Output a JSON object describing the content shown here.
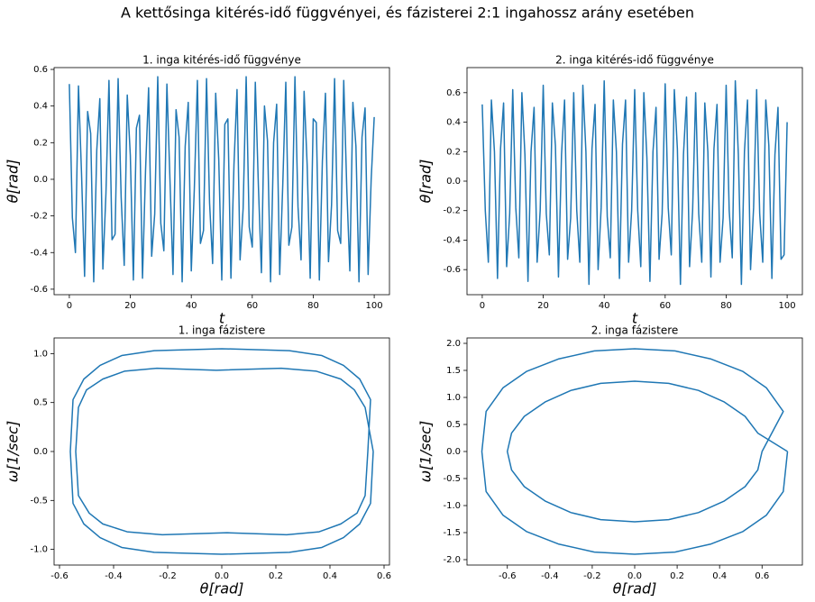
{
  "title": "A kettősinga kitérés-idő függvényei, és fázisterei 2:1 ingahossz arány esetében",
  "chart_data": [
    {
      "type": "line",
      "title": "1. inga kitérés-idő függvénye",
      "x_label": "t",
      "y_label": "θ[rad]",
      "color": "#1f77b4",
      "x": [
        0,
        1,
        2,
        3,
        4,
        5,
        6,
        7,
        8,
        9,
        10,
        11,
        12,
        13,
        14,
        15,
        16,
        17,
        18,
        19,
        20,
        21,
        22,
        23,
        24,
        25,
        26,
        27,
        28,
        29,
        30,
        31,
        32,
        33,
        34,
        35,
        36,
        37,
        38,
        39,
        40,
        41,
        42,
        43,
        44,
        45,
        46,
        47,
        48,
        49,
        50,
        51,
        52,
        53,
        54,
        55,
        56,
        57,
        58,
        59,
        60,
        61,
        62,
        63,
        64,
        65,
        66,
        67,
        68,
        69,
        70,
        71,
        72,
        73,
        74,
        75,
        76,
        77,
        78,
        79,
        80,
        81,
        82,
        83,
        84,
        85,
        86,
        87,
        88,
        89,
        90,
        91,
        92,
        93,
        94,
        95,
        96,
        97,
        98,
        99,
        100
      ],
      "values": [
        0.52,
        -0.21,
        -0.4,
        0.51,
        0.03,
        -0.53,
        0.37,
        0.25,
        -0.56,
        0.16,
        0.44,
        -0.49,
        -0.08,
        0.54,
        -0.33,
        -0.3,
        0.55,
        -0.1,
        -0.47,
        0.46,
        0.13,
        -0.55,
        0.28,
        0.35,
        -0.54,
        0.05,
        0.5,
        -0.42,
        -0.19,
        0.56,
        -0.24,
        -0.39,
        0.52,
        0.0,
        -0.52,
        0.38,
        0.23,
        -0.56,
        0.18,
        0.42,
        -0.5,
        -0.05,
        0.54,
        -0.35,
        -0.28,
        0.55,
        -0.13,
        -0.46,
        0.47,
        0.11,
        -0.55,
        0.3,
        0.33,
        -0.54,
        0.08,
        0.49,
        -0.44,
        -0.16,
        0.56,
        -0.26,
        -0.37,
        0.53,
        -0.03,
        -0.51,
        0.4,
        0.21,
        -0.56,
        0.2,
        0.41,
        -0.52,
        -0.03,
        0.53,
        -0.36,
        -0.26,
        0.56,
        -0.15,
        -0.44,
        0.48,
        0.08,
        -0.54,
        0.33,
        0.31,
        -0.55,
        0.1,
        0.47,
        -0.45,
        -0.14,
        0.55,
        -0.28,
        -0.35,
        0.54,
        -0.05,
        -0.5,
        0.42,
        0.18,
        -0.56,
        0.23,
        0.39,
        -0.52,
        0.0,
        0.34
      ],
      "xlim": [
        -5,
        105
      ],
      "xticks": [
        0,
        20,
        40,
        60,
        80,
        100
      ],
      "ylim": [
        -0.63,
        0.61
      ],
      "yticks": [
        -0.6,
        -0.4,
        -0.2,
        {
          "value": 0,
          "label": "0.0"
        },
        0.2,
        0.4,
        0.6
      ]
    },
    {
      "type": "line",
      "title": "2. inga kitérés-idő függvénye",
      "x_label": "t",
      "y_label": "θ[rad]",
      "color": "#1f77b4",
      "x": [
        0,
        1,
        2,
        3,
        4,
        5,
        6,
        7,
        8,
        9,
        10,
        11,
        12,
        13,
        14,
        15,
        16,
        17,
        18,
        19,
        20,
        21,
        22,
        23,
        24,
        25,
        26,
        27,
        28,
        29,
        30,
        31,
        32,
        33,
        34,
        35,
        36,
        37,
        38,
        39,
        40,
        41,
        42,
        43,
        44,
        45,
        46,
        47,
        48,
        49,
        50,
        51,
        52,
        53,
        54,
        55,
        56,
        57,
        58,
        59,
        60,
        61,
        62,
        63,
        64,
        65,
        66,
        67,
        68,
        69,
        70,
        71,
        72,
        73,
        74,
        75,
        76,
        77,
        78,
        79,
        80,
        81,
        82,
        83,
        84,
        85,
        86,
        87,
        88,
        89,
        90,
        91,
        92,
        93,
        94,
        95,
        96,
        97,
        98,
        99,
        100
      ],
      "values": [
        0.52,
        -0.2,
        -0.55,
        0.55,
        0.2,
        -0.66,
        0.22,
        0.53,
        -0.58,
        -0.22,
        0.62,
        -0.18,
        -0.52,
        0.6,
        0.18,
        -0.68,
        0.2,
        0.5,
        -0.55,
        -0.2,
        0.65,
        -0.22,
        -0.5,
        0.53,
        0.24,
        -0.65,
        0.18,
        0.55,
        -0.53,
        -0.25,
        0.6,
        -0.2,
        -0.55,
        0.65,
        0.2,
        -0.7,
        0.22,
        0.52,
        -0.6,
        -0.18,
        0.68,
        -0.24,
        -0.52,
        0.55,
        0.2,
        -0.66,
        0.25,
        0.55,
        -0.55,
        -0.2,
        0.62,
        -0.2,
        -0.58,
        0.6,
        0.16,
        -0.68,
        0.2,
        0.5,
        -0.53,
        -0.22,
        0.66,
        -0.18,
        -0.5,
        0.62,
        0.22,
        -0.7,
        0.18,
        0.57,
        -0.58,
        -0.2,
        0.6,
        -0.22,
        -0.55,
        0.53,
        0.2,
        -0.65,
        0.22,
        0.52,
        -0.55,
        -0.25,
        0.65,
        -0.2,
        -0.52,
        0.68,
        0.18,
        -0.7,
        0.2,
        0.55,
        -0.6,
        -0.18,
        0.62,
        -0.22,
        -0.55,
        0.55,
        0.24,
        -0.66,
        0.18,
        0.5,
        -0.53,
        -0.5,
        0.4
      ],
      "xlim": [
        -5,
        105
      ],
      "xticks": [
        0,
        20,
        40,
        60,
        80,
        100
      ],
      "ylim": [
        -0.77,
        0.77
      ],
      "yticks": [
        -0.6,
        -0.4,
        -0.2,
        {
          "value": 0,
          "label": "0.0"
        },
        0.2,
        0.4,
        0.6
      ]
    },
    {
      "type": "line",
      "title": "1. inga fázistere",
      "x_label": "θ[rad]",
      "y_label": "ω[1/sec]",
      "color": "#1f77b4",
      "x": [
        0.56,
        0.55,
        0.51,
        0.45,
        0.37,
        0.25,
        0,
        -0.25,
        -0.37,
        -0.45,
        -0.51,
        -0.55,
        -0.56,
        -0.55,
        -0.51,
        -0.45,
        -0.37,
        -0.25,
        0,
        0.25,
        0.37,
        0.45,
        0.51,
        0.55,
        0.54,
        0.53,
        0.5,
        0.44,
        0.36,
        0.24,
        0.02,
        -0.22,
        -0.35,
        -0.44,
        -0.49,
        -0.53,
        -0.54,
        -0.53,
        -0.5,
        -0.44,
        -0.36,
        -0.24,
        -0.02,
        0.22,
        0.35,
        0.44,
        0.49,
        0.53,
        0.56
      ],
      "values": [
        0,
        -0.53,
        -0.74,
        -0.88,
        -0.98,
        -1.03,
        -1.05,
        -1.03,
        -0.98,
        -0.88,
        -0.74,
        -0.53,
        0,
        0.53,
        0.74,
        0.88,
        0.98,
        1.03,
        1.05,
        1.03,
        0.98,
        0.88,
        0.74,
        0.53,
        0,
        -0.45,
        -0.63,
        -0.74,
        -0.82,
        -0.85,
        -0.83,
        -0.85,
        -0.82,
        -0.74,
        -0.63,
        -0.45,
        0,
        0.45,
        0.63,
        0.74,
        0.82,
        0.85,
        0.83,
        0.85,
        0.82,
        0.74,
        0.63,
        0.45,
        0
      ],
      "xlim": [
        -0.62,
        0.62
      ],
      "xticks": [
        -0.6,
        -0.4,
        -0.2,
        {
          "value": 0,
          "label": "0.0"
        },
        0.2,
        0.4,
        0.6
      ],
      "ylim": [
        -1.16,
        1.16
      ],
      "yticks": [
        {
          "value": -1,
          "label": "-1.0"
        },
        -0.5,
        {
          "value": 0,
          "label": "0.0"
        },
        0.5,
        {
          "value": 1,
          "label": "1.0"
        }
      ]
    },
    {
      "type": "line",
      "title": "2. inga fázistere",
      "x_label": "θ[rad]",
      "y_label": "ω[1/sec]",
      "color": "#1f77b4",
      "x": [
        0.72,
        0.7,
        0.62,
        0.51,
        0.36,
        0.19,
        0,
        -0.19,
        -0.36,
        -0.51,
        -0.62,
        -0.7,
        -0.72,
        -0.7,
        -0.62,
        -0.51,
        -0.36,
        -0.19,
        0,
        0.19,
        0.36,
        0.51,
        0.62,
        0.7,
        0.6,
        0.58,
        0.52,
        0.42,
        0.3,
        0.16,
        0,
        -0.16,
        -0.3,
        -0.42,
        -0.52,
        -0.58,
        -0.6,
        -0.58,
        -0.52,
        -0.42,
        -0.3,
        -0.16,
        0,
        0.16,
        0.3,
        0.42,
        0.52,
        0.58,
        0.72
      ],
      "values": [
        0,
        -0.74,
        -1.18,
        -1.48,
        -1.71,
        -1.86,
        -1.9,
        -1.86,
        -1.71,
        -1.48,
        -1.18,
        -0.74,
        0,
        0.74,
        1.18,
        1.48,
        1.71,
        1.86,
        1.9,
        1.86,
        1.71,
        1.48,
        1.18,
        0.74,
        0,
        -0.34,
        -0.65,
        -0.92,
        -1.13,
        -1.26,
        -1.3,
        -1.26,
        -1.13,
        -0.92,
        -0.65,
        -0.34,
        0,
        0.34,
        0.65,
        0.92,
        1.13,
        1.26,
        1.3,
        1.26,
        1.13,
        0.92,
        0.65,
        0.34,
        0
      ],
      "xlim": [
        -0.79,
        0.79
      ],
      "xticks": [
        -0.6,
        -0.4,
        -0.2,
        {
          "value": 0,
          "label": "0.0"
        },
        0.2,
        0.4,
        0.6
      ],
      "ylim": [
        -2.1,
        2.1
      ],
      "yticks": [
        {
          "value": -2,
          "label": "-2.0"
        },
        -1.5,
        {
          "value": -1,
          "label": "-1.0"
        },
        -0.5,
        {
          "value": 0,
          "label": "0.0"
        },
        0.5,
        {
          "value": 1,
          "label": "1.0"
        },
        1.5,
        {
          "value": 2,
          "label": "2.0"
        }
      ]
    }
  ]
}
